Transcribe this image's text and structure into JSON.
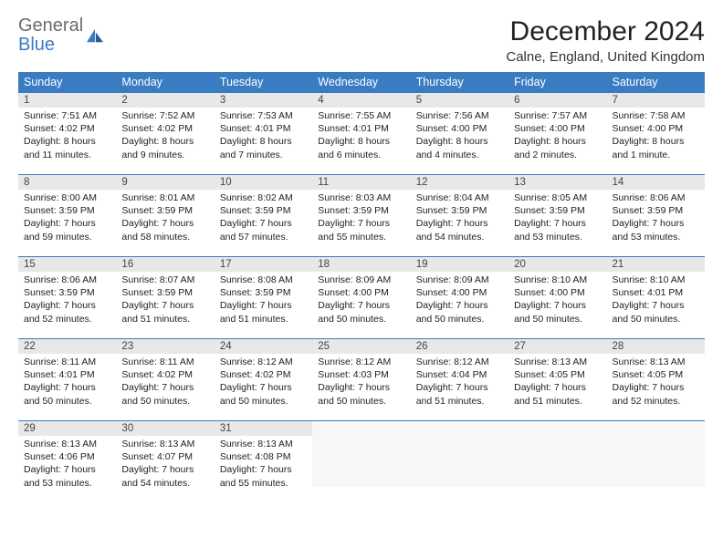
{
  "brand": {
    "word1": "General",
    "word2": "Blue",
    "word1_color": "#6b6b6b",
    "word2_color": "#3a7cc2",
    "icon_color": "#3a7cc2"
  },
  "title": "December 2024",
  "location": "Calne, England, United Kingdom",
  "colors": {
    "header_bg": "#3a7cc2",
    "header_text": "#ffffff",
    "daynum_bg": "#e8e8e8",
    "daynum_text": "#444444",
    "body_text": "#222222",
    "cell_border": "#3a7cc2",
    "page_bg": "#ffffff"
  },
  "typography": {
    "title_fontsize_pt": 22,
    "location_fontsize_pt": 11,
    "header_fontsize_pt": 9.5,
    "daynum_fontsize_pt": 8.5,
    "body_fontsize_pt": 8
  },
  "day_headers": [
    "Sunday",
    "Monday",
    "Tuesday",
    "Wednesday",
    "Thursday",
    "Friday",
    "Saturday"
  ],
  "weeks": [
    [
      {
        "n": "1",
        "sunrise": "Sunrise: 7:51 AM",
        "sunset": "Sunset: 4:02 PM",
        "day": "Daylight: 8 hours and 11 minutes."
      },
      {
        "n": "2",
        "sunrise": "Sunrise: 7:52 AM",
        "sunset": "Sunset: 4:02 PM",
        "day": "Daylight: 8 hours and 9 minutes."
      },
      {
        "n": "3",
        "sunrise": "Sunrise: 7:53 AM",
        "sunset": "Sunset: 4:01 PM",
        "day": "Daylight: 8 hours and 7 minutes."
      },
      {
        "n": "4",
        "sunrise": "Sunrise: 7:55 AM",
        "sunset": "Sunset: 4:01 PM",
        "day": "Daylight: 8 hours and 6 minutes."
      },
      {
        "n": "5",
        "sunrise": "Sunrise: 7:56 AM",
        "sunset": "Sunset: 4:00 PM",
        "day": "Daylight: 8 hours and 4 minutes."
      },
      {
        "n": "6",
        "sunrise": "Sunrise: 7:57 AM",
        "sunset": "Sunset: 4:00 PM",
        "day": "Daylight: 8 hours and 2 minutes."
      },
      {
        "n": "7",
        "sunrise": "Sunrise: 7:58 AM",
        "sunset": "Sunset: 4:00 PM",
        "day": "Daylight: 8 hours and 1 minute."
      }
    ],
    [
      {
        "n": "8",
        "sunrise": "Sunrise: 8:00 AM",
        "sunset": "Sunset: 3:59 PM",
        "day": "Daylight: 7 hours and 59 minutes."
      },
      {
        "n": "9",
        "sunrise": "Sunrise: 8:01 AM",
        "sunset": "Sunset: 3:59 PM",
        "day": "Daylight: 7 hours and 58 minutes."
      },
      {
        "n": "10",
        "sunrise": "Sunrise: 8:02 AM",
        "sunset": "Sunset: 3:59 PM",
        "day": "Daylight: 7 hours and 57 minutes."
      },
      {
        "n": "11",
        "sunrise": "Sunrise: 8:03 AM",
        "sunset": "Sunset: 3:59 PM",
        "day": "Daylight: 7 hours and 55 minutes."
      },
      {
        "n": "12",
        "sunrise": "Sunrise: 8:04 AM",
        "sunset": "Sunset: 3:59 PM",
        "day": "Daylight: 7 hours and 54 minutes."
      },
      {
        "n": "13",
        "sunrise": "Sunrise: 8:05 AM",
        "sunset": "Sunset: 3:59 PM",
        "day": "Daylight: 7 hours and 53 minutes."
      },
      {
        "n": "14",
        "sunrise": "Sunrise: 8:06 AM",
        "sunset": "Sunset: 3:59 PM",
        "day": "Daylight: 7 hours and 53 minutes."
      }
    ],
    [
      {
        "n": "15",
        "sunrise": "Sunrise: 8:06 AM",
        "sunset": "Sunset: 3:59 PM",
        "day": "Daylight: 7 hours and 52 minutes."
      },
      {
        "n": "16",
        "sunrise": "Sunrise: 8:07 AM",
        "sunset": "Sunset: 3:59 PM",
        "day": "Daylight: 7 hours and 51 minutes."
      },
      {
        "n": "17",
        "sunrise": "Sunrise: 8:08 AM",
        "sunset": "Sunset: 3:59 PM",
        "day": "Daylight: 7 hours and 51 minutes."
      },
      {
        "n": "18",
        "sunrise": "Sunrise: 8:09 AM",
        "sunset": "Sunset: 4:00 PM",
        "day": "Daylight: 7 hours and 50 minutes."
      },
      {
        "n": "19",
        "sunrise": "Sunrise: 8:09 AM",
        "sunset": "Sunset: 4:00 PM",
        "day": "Daylight: 7 hours and 50 minutes."
      },
      {
        "n": "20",
        "sunrise": "Sunrise: 8:10 AM",
        "sunset": "Sunset: 4:00 PM",
        "day": "Daylight: 7 hours and 50 minutes."
      },
      {
        "n": "21",
        "sunrise": "Sunrise: 8:10 AM",
        "sunset": "Sunset: 4:01 PM",
        "day": "Daylight: 7 hours and 50 minutes."
      }
    ],
    [
      {
        "n": "22",
        "sunrise": "Sunrise: 8:11 AM",
        "sunset": "Sunset: 4:01 PM",
        "day": "Daylight: 7 hours and 50 minutes."
      },
      {
        "n": "23",
        "sunrise": "Sunrise: 8:11 AM",
        "sunset": "Sunset: 4:02 PM",
        "day": "Daylight: 7 hours and 50 minutes."
      },
      {
        "n": "24",
        "sunrise": "Sunrise: 8:12 AM",
        "sunset": "Sunset: 4:02 PM",
        "day": "Daylight: 7 hours and 50 minutes."
      },
      {
        "n": "25",
        "sunrise": "Sunrise: 8:12 AM",
        "sunset": "Sunset: 4:03 PM",
        "day": "Daylight: 7 hours and 50 minutes."
      },
      {
        "n": "26",
        "sunrise": "Sunrise: 8:12 AM",
        "sunset": "Sunset: 4:04 PM",
        "day": "Daylight: 7 hours and 51 minutes."
      },
      {
        "n": "27",
        "sunrise": "Sunrise: 8:13 AM",
        "sunset": "Sunset: 4:05 PM",
        "day": "Daylight: 7 hours and 51 minutes."
      },
      {
        "n": "28",
        "sunrise": "Sunrise: 8:13 AM",
        "sunset": "Sunset: 4:05 PM",
        "day": "Daylight: 7 hours and 52 minutes."
      }
    ],
    [
      {
        "n": "29",
        "sunrise": "Sunrise: 8:13 AM",
        "sunset": "Sunset: 4:06 PM",
        "day": "Daylight: 7 hours and 53 minutes."
      },
      {
        "n": "30",
        "sunrise": "Sunrise: 8:13 AM",
        "sunset": "Sunset: 4:07 PM",
        "day": "Daylight: 7 hours and 54 minutes."
      },
      {
        "n": "31",
        "sunrise": "Sunrise: 8:13 AM",
        "sunset": "Sunset: 4:08 PM",
        "day": "Daylight: 7 hours and 55 minutes."
      },
      {
        "empty": true
      },
      {
        "empty": true
      },
      {
        "empty": true
      },
      {
        "empty": true
      }
    ]
  ]
}
